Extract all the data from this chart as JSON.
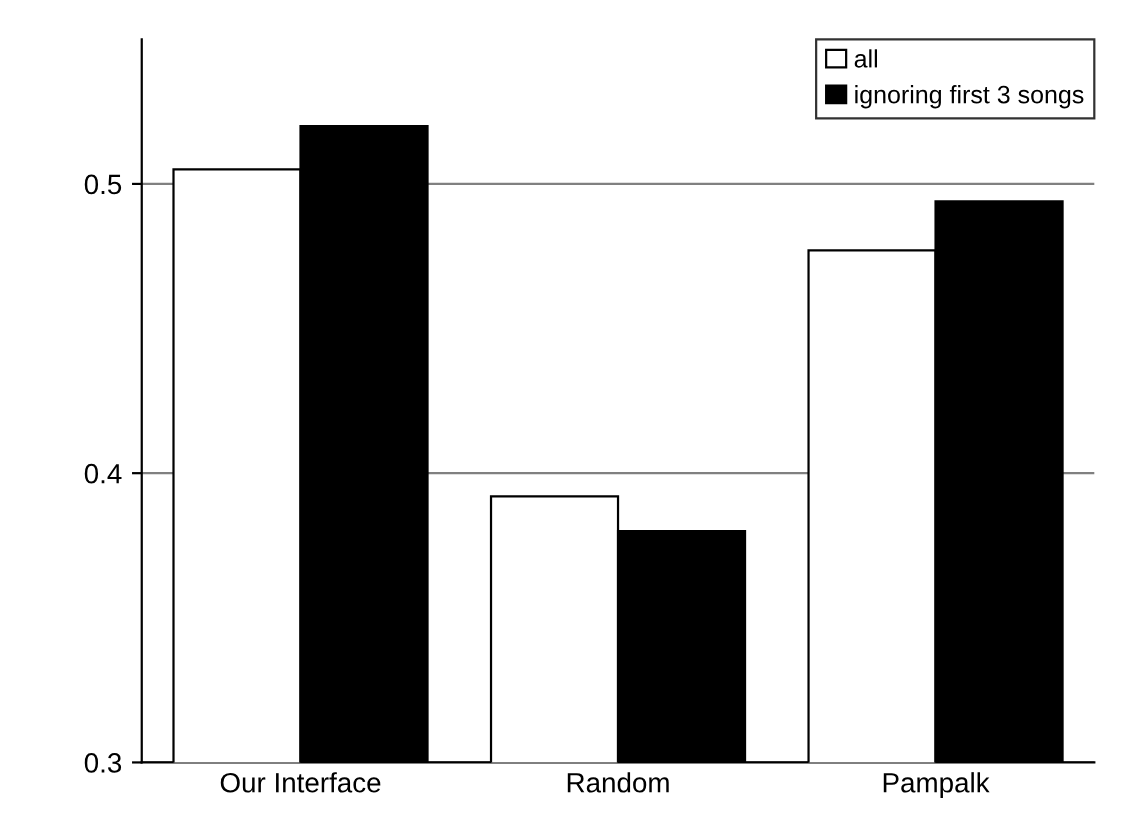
{
  "chart_data": {
    "type": "bar",
    "categories": [
      "Our Interface",
      "Random",
      "Pampalk"
    ],
    "series": [
      {
        "name": "all",
        "color": "#ffffff",
        "values": [
          0.505,
          0.392,
          0.477
        ]
      },
      {
        "name": "ignoring first 3 songs",
        "color": "#000000",
        "values": [
          0.52,
          0.38,
          0.494
        ]
      }
    ],
    "ylim": [
      0.3,
      0.55
    ],
    "yticks": [
      0.3,
      0.4,
      0.5
    ],
    "grid": "y",
    "legend": "top right"
  }
}
